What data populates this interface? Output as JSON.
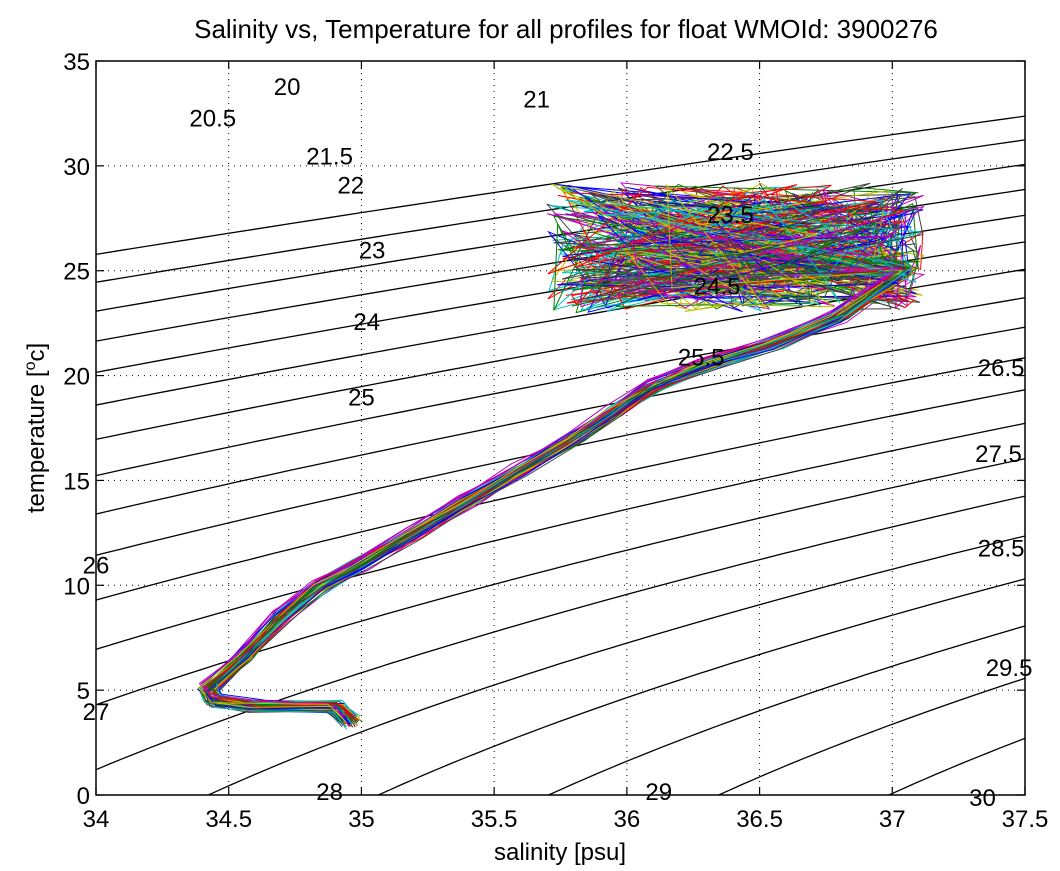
{
  "chart_data": {
    "type": "line",
    "title": "Salinity vs, Temperature for all profiles for float WMOId: 3900276",
    "xlabel": "salinity [psu]",
    "ylabel": "temperature [",
    "ylabel_sup": "o",
    "ylabel_tail": "c]",
    "xlim": [
      34,
      37.5
    ],
    "ylim": [
      0,
      35
    ],
    "x_ticks": [
      34,
      34.5,
      35,
      35.5,
      36,
      36.5,
      37,
      37.5
    ],
    "x_tick_labels": [
      "34",
      "34.5",
      "35",
      "35.5",
      "36",
      "36.5",
      "37",
      "37.5"
    ],
    "y_ticks": [
      0,
      5,
      10,
      15,
      20,
      25,
      30,
      35
    ],
    "y_tick_labels": [
      "0",
      "5",
      "10",
      "15",
      "20",
      "25",
      "30",
      "35"
    ],
    "grid": true,
    "grid_style": "dotted",
    "density_contours": {
      "color": "#000000",
      "levels": [
        20,
        20.5,
        21,
        21.5,
        22,
        22.5,
        23,
        23.5,
        24,
        24.5,
        25,
        25.5,
        26,
        26.5,
        27,
        27.5,
        28,
        28.5,
        29,
        29.5,
        30
      ]
    },
    "contour_labels": [
      {
        "text": "20",
        "s": 34.72,
        "t": 33.8
      },
      {
        "text": "20.5",
        "s": 34.44,
        "t": 32.3
      },
      {
        "text": "21",
        "s": 35.66,
        "t": 33.2
      },
      {
        "text": "21.5",
        "s": 34.88,
        "t": 30.5
      },
      {
        "text": "22",
        "s": 34.96,
        "t": 29.1
      },
      {
        "text": "22.5",
        "s": 36.39,
        "t": 30.7
      },
      {
        "text": "23",
        "s": 35.04,
        "t": 26.0
      },
      {
        "text": "23.5",
        "s": 36.39,
        "t": 27.7
      },
      {
        "text": "24",
        "s": 35.02,
        "t": 22.6
      },
      {
        "text": "24.5",
        "s": 36.34,
        "t": 24.3
      },
      {
        "text": "25",
        "s": 35.0,
        "t": 19.0
      },
      {
        "text": "25.5",
        "s": 36.28,
        "t": 20.9
      },
      {
        "text": "26",
        "s": 34.0,
        "t": 11.0
      },
      {
        "text": "26.5",
        "s": 37.41,
        "t": 20.4
      },
      {
        "text": "27",
        "s": 34.0,
        "t": 4.0
      },
      {
        "text": "27.5",
        "s": 37.4,
        "t": 16.3
      },
      {
        "text": "28",
        "s": 34.88,
        "t": 0.2
      },
      {
        "text": "28.5",
        "s": 37.41,
        "t": 11.8
      },
      {
        "text": "29",
        "s": 36.12,
        "t": 0.2
      },
      {
        "text": "29.5",
        "s": 37.44,
        "t": 6.1
      },
      {
        "text": "30",
        "s": 37.34,
        "t": -0.1
      }
    ],
    "profile_colors": [
      "#0000ff",
      "#008000",
      "#ff0000",
      "#00bfbf",
      "#bf00bf",
      "#bfbf00",
      "#404040"
    ],
    "profile_count": 70,
    "profile_shape": {
      "common_path": [
        [
          34.96,
          3.5
        ],
        [
          34.9,
          4.2
        ],
        [
          34.6,
          4.25
        ],
        [
          34.45,
          4.5
        ],
        [
          34.42,
          5.0
        ],
        [
          34.55,
          6.5
        ],
        [
          34.7,
          8.5
        ],
        [
          34.85,
          10.0
        ],
        [
          35.0,
          11.0
        ],
        [
          35.2,
          12.5
        ],
        [
          35.4,
          14.0
        ],
        [
          35.6,
          15.5
        ],
        [
          35.8,
          17.0
        ],
        [
          35.95,
          18.2
        ],
        [
          36.1,
          19.5
        ],
        [
          36.3,
          20.5
        ],
        [
          36.55,
          21.5
        ],
        [
          36.8,
          22.8
        ],
        [
          37.05,
          25.0
        ]
      ],
      "upper_s_range": [
        35.7,
        37.12
      ],
      "upper_t_range": [
        23.0,
        29.2
      ]
    }
  }
}
